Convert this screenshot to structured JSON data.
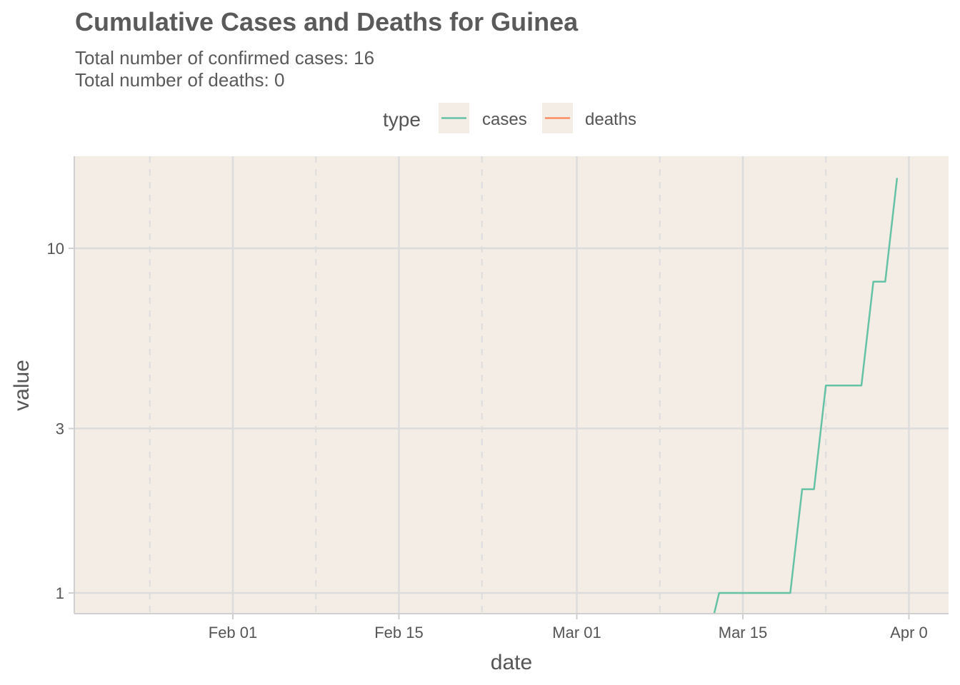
{
  "chart_data": {
    "type": "line",
    "title": "Cumulative Cases and Deaths for Guinea",
    "subtitle": [
      "Total number of confirmed cases: 16",
      "Total number of deaths: 0"
    ],
    "xlabel": "date",
    "ylabel": "value",
    "y_scale": "log10",
    "ylim": [
      0.9,
      17
    ],
    "xlim": [
      "2020-01-22",
      "2020-03-31"
    ],
    "x_ticks": [
      {
        "date": "2020-02-01",
        "label": "Feb 01"
      },
      {
        "date": "2020-02-15",
        "label": "Feb 15"
      },
      {
        "date": "2020-03-01",
        "label": "Mar 01"
      },
      {
        "date": "2020-03-15",
        "label": "Mar 15"
      },
      {
        "date": "2020-03-29",
        "label": "Apr 0"
      }
    ],
    "x_minor_ticks": [
      "2020-01-25",
      "2020-02-08",
      "2020-02-22",
      "2020-03-08",
      "2020-03-22"
    ],
    "y_ticks": [
      1,
      3,
      10
    ],
    "grid": true,
    "legend": {
      "title": "type",
      "position": "top"
    },
    "series": [
      {
        "name": "cases",
        "color": "#66c2a5",
        "points": [
          {
            "x": "2020-03-11",
            "y": 0
          },
          {
            "x": "2020-03-12",
            "y": 0
          },
          {
            "x": "2020-03-13",
            "y": 1
          },
          {
            "x": "2020-03-14",
            "y": 1
          },
          {
            "x": "2020-03-15",
            "y": 1
          },
          {
            "x": "2020-03-16",
            "y": 1
          },
          {
            "x": "2020-03-17",
            "y": 1
          },
          {
            "x": "2020-03-18",
            "y": 1
          },
          {
            "x": "2020-03-19",
            "y": 1
          },
          {
            "x": "2020-03-20",
            "y": 2
          },
          {
            "x": "2020-03-21",
            "y": 2
          },
          {
            "x": "2020-03-22",
            "y": 4
          },
          {
            "x": "2020-03-23",
            "y": 4
          },
          {
            "x": "2020-03-24",
            "y": 4
          },
          {
            "x": "2020-03-25",
            "y": 4
          },
          {
            "x": "2020-03-26",
            "y": 8
          },
          {
            "x": "2020-03-27",
            "y": 8
          },
          {
            "x": "2020-03-28",
            "y": 16
          }
        ]
      },
      {
        "name": "deaths",
        "color": "#fc8d62",
        "points": []
      }
    ]
  }
}
